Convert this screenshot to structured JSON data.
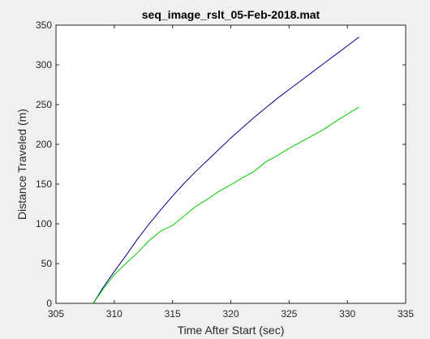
{
  "chart_data": {
    "type": "line",
    "title": "seq_image_rslt_05-Feb-2018.mat",
    "xlabel": "Time After Start (sec)",
    "ylabel": "Distance Traveled (m)",
    "xlim": [
      305,
      335
    ],
    "ylim": [
      0,
      350
    ],
    "xticks": [
      305,
      310,
      315,
      320,
      325,
      330,
      335
    ],
    "yticks": [
      0,
      50,
      100,
      150,
      200,
      250,
      300,
      350
    ],
    "grid": false,
    "series": [
      {
        "color": "#00008b",
        "x": [
          308.2,
          309,
          310,
          311,
          312,
          313,
          314,
          315,
          316,
          317,
          318,
          319,
          320,
          321,
          322,
          323,
          324,
          325,
          326,
          327,
          328,
          329,
          330,
          331
        ],
        "y": [
          0,
          19,
          40,
          60,
          81,
          100,
          118,
          135,
          151,
          166,
          180,
          194,
          208,
          221,
          234,
          246,
          258,
          269,
          280,
          291,
          302,
          313,
          324,
          335
        ]
      },
      {
        "color": "#00cc00",
        "x": [
          308.2,
          309,
          310,
          311,
          312,
          313,
          314,
          315,
          316,
          317,
          318,
          319,
          320,
          321,
          322,
          323,
          324,
          325,
          326,
          327,
          328,
          329,
          330,
          331
        ],
        "y": [
          0,
          17,
          36,
          50,
          64,
          79,
          91,
          98,
          110,
          122,
          131,
          141,
          149,
          158,
          166,
          178,
          186,
          195,
          203,
          211,
          219,
          229,
          238,
          247
        ]
      }
    ]
  }
}
